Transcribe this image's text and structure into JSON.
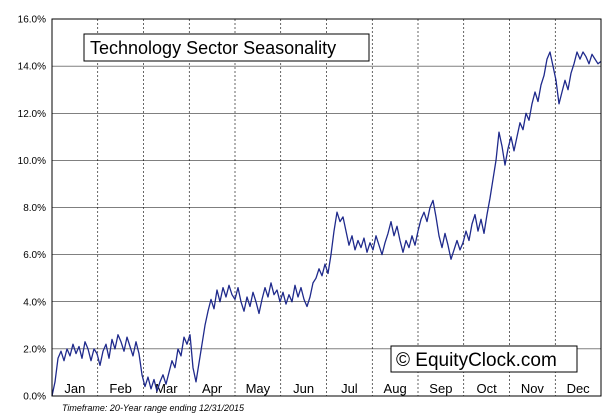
{
  "chart_data": {
    "type": "line",
    "title": "Technology Sector Seasonality",
    "watermark": "© EquityClock.com",
    "footnote": "Timeframe: 20-Year range ending 12/31/2015",
    "xlabel": "",
    "ylabel": "",
    "x_unit": "day of year",
    "xlim": [
      0,
      366
    ],
    "ylim": [
      0,
      16
    ],
    "y_ticks": [
      "0.0%",
      "2.0%",
      "4.0%",
      "6.0%",
      "8.0%",
      "10.0%",
      "12.0%",
      "14.0%",
      "16.0%"
    ],
    "months": [
      "Jan",
      "Feb",
      "Mar",
      "Apr",
      "May",
      "Jun",
      "Jul",
      "Aug",
      "Sep",
      "Oct",
      "Nov",
      "Dec"
    ],
    "grid": "horizontal solid at y ticks, vertical dashed at month boundaries",
    "line_color": "#1f2a8c",
    "series": [
      {
        "points": [
          [
            0,
            0.0
          ],
          [
            2,
            0.6
          ],
          [
            4,
            1.6
          ],
          [
            6,
            1.9
          ],
          [
            8,
            1.5
          ],
          [
            10,
            2.0
          ],
          [
            12,
            1.7
          ],
          [
            14,
            2.2
          ],
          [
            16,
            1.8
          ],
          [
            18,
            2.1
          ],
          [
            20,
            1.6
          ],
          [
            22,
            2.3
          ],
          [
            24,
            2.0
          ],
          [
            26,
            1.5
          ],
          [
            28,
            2.0
          ],
          [
            30,
            1.8
          ],
          [
            32,
            1.3
          ],
          [
            34,
            1.9
          ],
          [
            36,
            2.2
          ],
          [
            38,
            1.6
          ],
          [
            40,
            2.4
          ],
          [
            42,
            2.0
          ],
          [
            44,
            2.6
          ],
          [
            46,
            2.3
          ],
          [
            48,
            1.9
          ],
          [
            50,
            2.5
          ],
          [
            52,
            2.1
          ],
          [
            54,
            1.7
          ],
          [
            56,
            2.3
          ],
          [
            58,
            1.8
          ],
          [
            60,
            0.9
          ],
          [
            62,
            0.4
          ],
          [
            64,
            0.8
          ],
          [
            66,
            0.3
          ],
          [
            68,
            0.7
          ],
          [
            70,
            0.2
          ],
          [
            72,
            0.6
          ],
          [
            74,
            0.9
          ],
          [
            76,
            0.5
          ],
          [
            78,
            1.0
          ],
          [
            80,
            1.5
          ],
          [
            82,
            1.2
          ],
          [
            84,
            2.0
          ],
          [
            86,
            1.7
          ],
          [
            88,
            2.5
          ],
          [
            90,
            2.2
          ],
          [
            92,
            2.6
          ],
          [
            94,
            1.2
          ],
          [
            96,
            0.6
          ],
          [
            98,
            1.4
          ],
          [
            100,
            2.2
          ],
          [
            102,
            3.0
          ],
          [
            104,
            3.6
          ],
          [
            106,
            4.1
          ],
          [
            108,
            3.7
          ],
          [
            110,
            4.5
          ],
          [
            112,
            4.0
          ],
          [
            114,
            4.6
          ],
          [
            116,
            4.2
          ],
          [
            118,
            4.7
          ],
          [
            120,
            4.3
          ],
          [
            122,
            4.1
          ],
          [
            124,
            4.6
          ],
          [
            126,
            4.0
          ],
          [
            128,
            3.6
          ],
          [
            130,
            4.2
          ],
          [
            132,
            3.8
          ],
          [
            134,
            4.4
          ],
          [
            136,
            4.0
          ],
          [
            138,
            3.5
          ],
          [
            140,
            4.1
          ],
          [
            142,
            4.6
          ],
          [
            144,
            4.2
          ],
          [
            146,
            4.8
          ],
          [
            148,
            4.3
          ],
          [
            150,
            4.5
          ],
          [
            152,
            4.0
          ],
          [
            154,
            4.4
          ],
          [
            156,
            3.9
          ],
          [
            158,
            4.3
          ],
          [
            160,
            4.0
          ],
          [
            162,
            4.7
          ],
          [
            164,
            4.2
          ],
          [
            166,
            4.6
          ],
          [
            168,
            4.1
          ],
          [
            170,
            3.8
          ],
          [
            172,
            4.2
          ],
          [
            174,
            4.8
          ],
          [
            176,
            5.0
          ],
          [
            178,
            5.4
          ],
          [
            180,
            5.1
          ],
          [
            182,
            5.6
          ],
          [
            184,
            5.2
          ],
          [
            186,
            6.0
          ],
          [
            188,
            7.0
          ],
          [
            190,
            7.8
          ],
          [
            192,
            7.4
          ],
          [
            194,
            7.6
          ],
          [
            196,
            7.0
          ],
          [
            198,
            6.4
          ],
          [
            200,
            6.8
          ],
          [
            202,
            6.2
          ],
          [
            204,
            6.6
          ],
          [
            206,
            6.3
          ],
          [
            208,
            6.7
          ],
          [
            210,
            6.1
          ],
          [
            212,
            6.5
          ],
          [
            214,
            6.2
          ],
          [
            216,
            6.8
          ],
          [
            218,
            6.4
          ],
          [
            220,
            6.0
          ],
          [
            222,
            6.5
          ],
          [
            224,
            6.9
          ],
          [
            226,
            7.4
          ],
          [
            228,
            6.8
          ],
          [
            230,
            7.2
          ],
          [
            232,
            6.6
          ],
          [
            234,
            6.1
          ],
          [
            236,
            6.6
          ],
          [
            238,
            6.3
          ],
          [
            240,
            6.8
          ],
          [
            242,
            6.4
          ],
          [
            244,
            7.0
          ],
          [
            246,
            7.5
          ],
          [
            248,
            7.8
          ],
          [
            250,
            7.4
          ],
          [
            252,
            8.0
          ],
          [
            254,
            8.3
          ],
          [
            256,
            7.6
          ],
          [
            258,
            6.8
          ],
          [
            260,
            6.3
          ],
          [
            262,
            6.9
          ],
          [
            264,
            6.4
          ],
          [
            266,
            5.8
          ],
          [
            268,
            6.2
          ],
          [
            270,
            6.6
          ],
          [
            272,
            6.2
          ],
          [
            274,
            6.5
          ],
          [
            276,
            7.0
          ],
          [
            278,
            6.6
          ],
          [
            280,
            7.3
          ],
          [
            282,
            7.7
          ],
          [
            284,
            7.0
          ],
          [
            286,
            7.5
          ],
          [
            288,
            6.9
          ],
          [
            290,
            7.7
          ],
          [
            292,
            8.4
          ],
          [
            294,
            9.2
          ],
          [
            296,
            10.0
          ],
          [
            298,
            11.2
          ],
          [
            300,
            10.6
          ],
          [
            302,
            9.8
          ],
          [
            304,
            10.5
          ],
          [
            306,
            11.0
          ],
          [
            308,
            10.4
          ],
          [
            310,
            11.0
          ],
          [
            312,
            11.6
          ],
          [
            314,
            11.3
          ],
          [
            316,
            12.0
          ],
          [
            318,
            11.7
          ],
          [
            320,
            12.4
          ],
          [
            322,
            12.9
          ],
          [
            324,
            12.5
          ],
          [
            326,
            13.2
          ],
          [
            328,
            13.6
          ],
          [
            330,
            14.3
          ],
          [
            332,
            14.6
          ],
          [
            334,
            14.0
          ],
          [
            336,
            13.4
          ],
          [
            338,
            12.4
          ],
          [
            340,
            12.9
          ],
          [
            342,
            13.4
          ],
          [
            344,
            13.0
          ],
          [
            346,
            13.7
          ],
          [
            348,
            14.1
          ],
          [
            350,
            14.6
          ],
          [
            352,
            14.3
          ],
          [
            354,
            14.6
          ],
          [
            356,
            14.4
          ],
          [
            358,
            14.1
          ],
          [
            360,
            14.5
          ],
          [
            362,
            14.3
          ],
          [
            364,
            14.1
          ],
          [
            366,
            14.2
          ]
        ]
      }
    ]
  }
}
